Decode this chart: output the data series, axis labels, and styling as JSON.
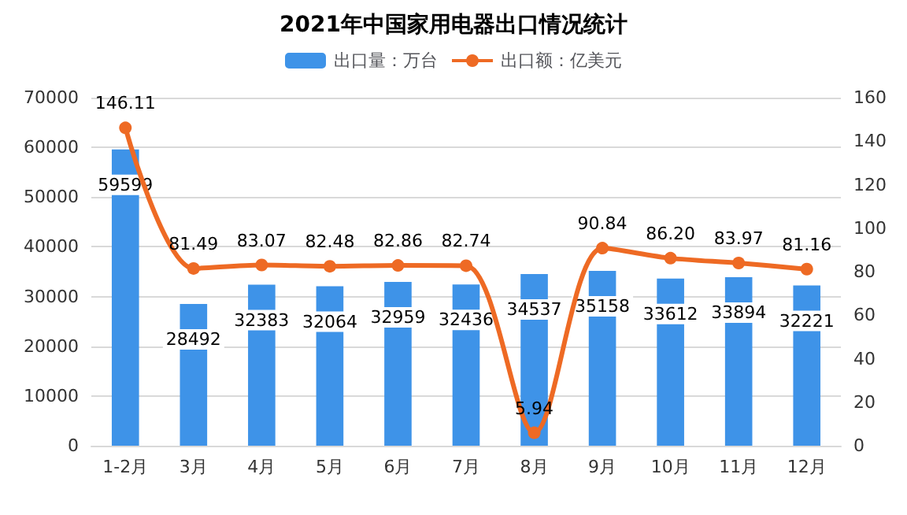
{
  "chart_data": {
    "type": "bar",
    "title": "2021年中国家用电器出口情况统计",
    "categories": [
      "1-2月",
      "3月",
      "4月",
      "5月",
      "6月",
      "7月",
      "8月",
      "9月",
      "10月",
      "11月",
      "12月"
    ],
    "series": [
      {
        "name": "出口量：万台",
        "color": "#3e93e8",
        "values": [
          59599,
          28492,
          32383,
          32064,
          32959,
          32436,
          34537,
          35158,
          33612,
          33894,
          32221
        ]
      },
      {
        "name": "出口额：亿美元",
        "type": "line",
        "axis": "y2",
        "color": "#ee6a24",
        "values": [
          146.11,
          81.49,
          83.07,
          82.48,
          82.86,
          82.74,
          5.94,
          90.84,
          86.2,
          83.97,
          81.16
        ],
        "value_labels": [
          "146.11",
          "81.49",
          "83.07",
          "82.48",
          "82.86",
          "82.74",
          "5.94",
          "90.84",
          "86.20",
          "83.97",
          "81.16"
        ]
      }
    ],
    "ylim": [
      0,
      70000
    ],
    "yticks": [
      0,
      10000,
      20000,
      30000,
      40000,
      50000,
      60000,
      70000
    ],
    "y2lim": [
      0,
      160
    ],
    "y2ticks": [
      0,
      20,
      40,
      60,
      80,
      100,
      120,
      140,
      160
    ],
    "data_labels": true,
    "grid": "y",
    "legend": "top",
    "marker": "circle"
  }
}
